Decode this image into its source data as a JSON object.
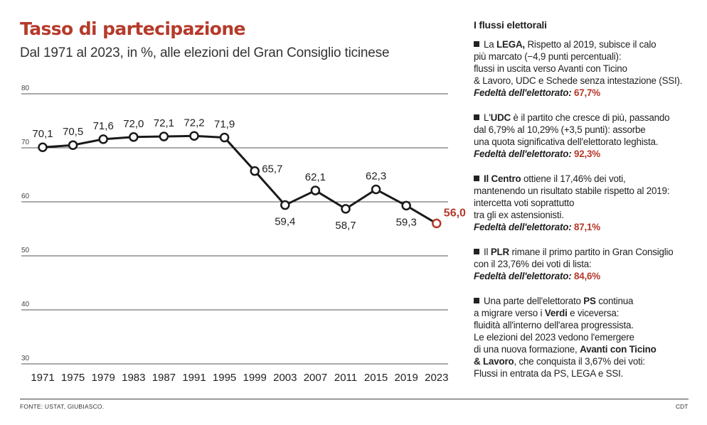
{
  "title": "Tasso di partecipazione",
  "subtitle": "Dal 1971 al 2023, in %, alle elezioni del Gran Consiglio ticinese",
  "chart_data": {
    "type": "line",
    "title": "Tasso di partecipazione",
    "subtitle": "Dal 1971 al 2023, in %, alle elezioni del Gran Consiglio ticinese",
    "categories": [
      "1971",
      "1975",
      "1979",
      "1983",
      "1987",
      "1991",
      "1995",
      "1999",
      "2003",
      "2007",
      "2011",
      "2015",
      "2019",
      "2023"
    ],
    "values": [
      70.1,
      70.5,
      71.6,
      72.0,
      72.1,
      72.2,
      71.9,
      65.7,
      59.4,
      62.1,
      58.7,
      62.3,
      59.3,
      56.0
    ],
    "value_labels": [
      "70,1",
      "70,5",
      "71,6",
      "72,0",
      "72,1",
      "72,2",
      "71,9",
      "65,7",
      "59,4",
      "62,1",
      "58,7",
      "62,3",
      "59,3",
      "56,0"
    ],
    "label_position": [
      "above",
      "above",
      "above",
      "above",
      "above",
      "above",
      "above",
      "right",
      "below",
      "above",
      "below",
      "above",
      "below",
      "above"
    ],
    "highlight_index": 13,
    "yticks": [
      30,
      40,
      50,
      60,
      70,
      80
    ],
    "ytick_labels": [
      "30",
      "40",
      "50",
      "60",
      "70",
      "80"
    ],
    "ylim": [
      30,
      80
    ],
    "xlabel": "",
    "ylabel": "",
    "grid": true,
    "colors": {
      "line": "#1a1a1a",
      "highlight": "#b53a2a",
      "grid": "#555555"
    }
  },
  "sidebar": {
    "title": "I flussi elettorali",
    "items": [
      {
        "lines": [
          [
            {
              "t": "La "
            },
            {
              "t": "LEGA,",
              "b": true
            },
            {
              "t": " Rispetto al 2019, subisce il calo"
            }
          ],
          [
            {
              "t": "più marcato (−4,9 punti percentuali):"
            }
          ],
          [
            {
              "t": "flussi in uscita verso Avanti con Ticino"
            }
          ],
          [
            {
              "t": "& Lavoro, UDC e Schede senza intestazione (SSI)."
            }
          ]
        ],
        "fed_label": "Fedeltà dell'elettorato:",
        "fed_value": "67,7%"
      },
      {
        "lines": [
          [
            {
              "t": "L'"
            },
            {
              "t": "UDC",
              "b": true
            },
            {
              "t": " è il partito che cresce di più, passando"
            }
          ],
          [
            {
              "t": "dal 6,79% al 10,29% (+3,5 punti): assorbe"
            }
          ],
          [
            {
              "t": "una quota significativa dell'elettorato leghista."
            }
          ]
        ],
        "fed_label": "Fedeltà dell'elettorato:",
        "fed_value": "92,3%"
      },
      {
        "lines": [
          [
            {
              "t": "Il Centro",
              "b": true
            },
            {
              "t": " ottiene il 17,46% dei voti,"
            }
          ],
          [
            {
              "t": "mantenendo un risultato stabile rispetto al 2019:"
            }
          ],
          [
            {
              "t": "intercetta voti soprattutto"
            }
          ],
          [
            {
              "t": "tra gli ex astensionisti."
            }
          ]
        ],
        "fed_label": "Fedeltà dell'elettorato:",
        "fed_value": "87,1%"
      },
      {
        "lines": [
          [
            {
              "t": "Il "
            },
            {
              "t": "PLR",
              "b": true
            },
            {
              "t": " rimane il primo partito in Gran Consiglio"
            }
          ],
          [
            {
              "t": "con il 23,76% dei voti di lista:"
            }
          ]
        ],
        "fed_label": "Fedeltà dell'elettorato:",
        "fed_value": "84,6%"
      },
      {
        "lines": [
          [
            {
              "t": "Una parte dell'elettorato "
            },
            {
              "t": "PS",
              "b": true
            },
            {
              "t": " continua"
            }
          ],
          [
            {
              "t": "a migrare verso i "
            },
            {
              "t": "Verdi",
              "b": true
            },
            {
              "t": " e viceversa:"
            }
          ],
          [
            {
              "t": "fluidità all'interno dell'area progressista."
            }
          ],
          [
            {
              "t": "Le elezioni del 2023 vedono l'emergere"
            }
          ],
          [
            {
              "t": "di una nuova formazione, "
            },
            {
              "t": "Avanti con Ticino",
              "b": true
            }
          ],
          [
            {
              "t": "& Lavoro",
              "b": true
            },
            {
              "t": ", che conquista il 3,67% dei voti:"
            }
          ],
          [
            {
              "t": "Flussi in entrata da PS, LEGA e SSI."
            }
          ]
        ],
        "fed_label": "",
        "fed_value": ""
      }
    ]
  },
  "footer": {
    "source": "FONTE: USTAT, GIUBIASCO.",
    "credit": "CDT"
  }
}
